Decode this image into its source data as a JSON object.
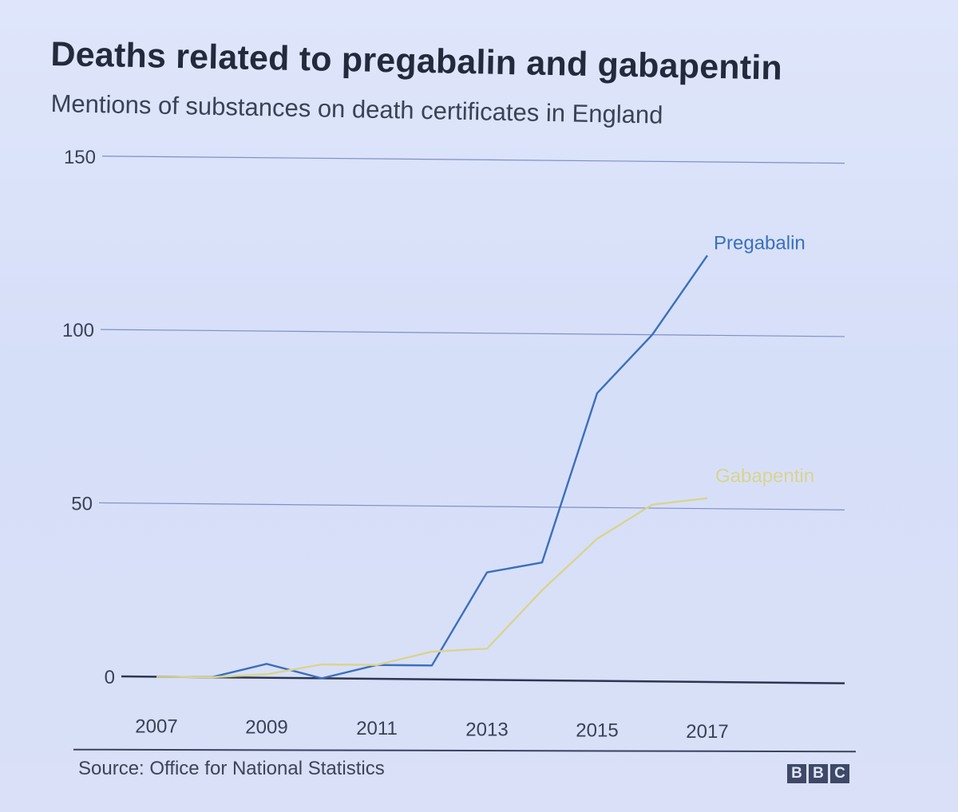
{
  "chart_data": {
    "type": "line",
    "title": "Deaths related to pregabalin and gabapentin",
    "subtitle": "Mentions of substances on death certificates in England",
    "x": [
      2007,
      2008,
      2009,
      2010,
      2011,
      2012,
      2013,
      2014,
      2015,
      2016,
      2017
    ],
    "xticks": [
      "2007",
      "2009",
      "2011",
      "2013",
      "2015",
      "2017"
    ],
    "yticks": [
      "0",
      "50",
      "100",
      "150"
    ],
    "ylim": [
      0,
      150
    ],
    "grid": true,
    "series": [
      {
        "name": "Pregabalin",
        "color": "#3a6fbe",
        "values": [
          0,
          0,
          4,
          0,
          4,
          4,
          31,
          34,
          83,
          100,
          123
        ]
      },
      {
        "name": "Gabapentin",
        "color": "#d9d48e",
        "values": [
          0,
          0,
          1,
          4,
          4,
          8,
          9,
          26,
          41,
          51,
          53
        ]
      }
    ]
  },
  "footer": {
    "source": "Source: Office for National Statistics",
    "logo_letters": [
      "B",
      "B",
      "C"
    ]
  }
}
